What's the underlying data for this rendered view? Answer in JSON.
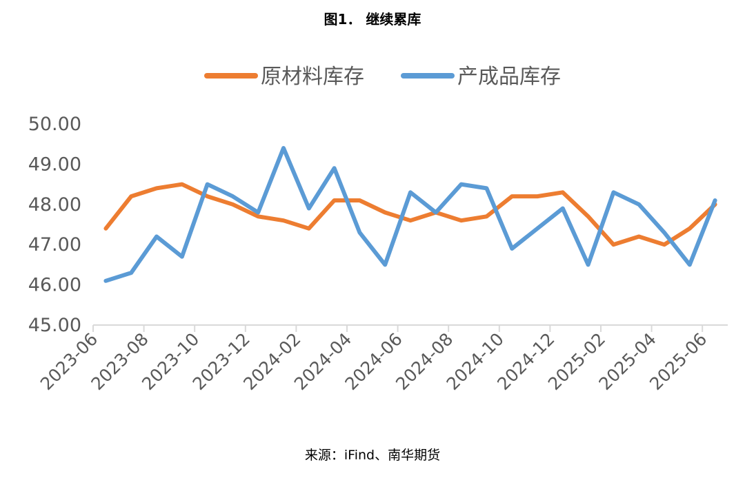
{
  "title": "图1．  继续累库",
  "source": "来源：iFind、南华期货",
  "chart_data": {
    "type": "line",
    "title": "图1．  继续累库",
    "xlabel": "",
    "ylabel": "",
    "ylim": [
      45,
      50
    ],
    "yticks": [
      "45.00",
      "46.00",
      "47.00",
      "48.00",
      "49.00",
      "50.00"
    ],
    "x_tick_labels": [
      "2023-06",
      "2023-08",
      "2023-10",
      "2023-12",
      "2024-02",
      "2024-04",
      "2024-06",
      "2024-08",
      "2024-10",
      "2024-12",
      "2025-02",
      "2025-04",
      "2025-06"
    ],
    "x": [
      "2023-06",
      "2023-07",
      "2023-08",
      "2023-09",
      "2023-10",
      "2023-11",
      "2023-12",
      "2024-01",
      "2024-02",
      "2024-03",
      "2024-04",
      "2024-05",
      "2024-06",
      "2024-07",
      "2024-08",
      "2024-09",
      "2024-10",
      "2024-11",
      "2024-12",
      "2025-01",
      "2025-02",
      "2025-03",
      "2025-04",
      "2025-05",
      "2025-06"
    ],
    "grid": false,
    "legend": "top",
    "series": [
      {
        "name": "原材料库存",
        "color": "#ED7D31",
        "values": [
          47.4,
          48.2,
          48.4,
          48.5,
          48.2,
          48.0,
          47.7,
          47.6,
          47.4,
          48.1,
          48.1,
          47.8,
          47.6,
          47.8,
          47.6,
          47.7,
          48.2,
          48.2,
          48.3,
          47.7,
          47.0,
          47.2,
          47.0,
          47.4,
          48.0
        ]
      },
      {
        "name": "产成品库存",
        "color": "#5B9BD5",
        "values": [
          46.1,
          46.3,
          47.2,
          46.7,
          48.5,
          48.2,
          47.8,
          49.4,
          47.9,
          48.9,
          47.3,
          46.5,
          48.3,
          47.8,
          48.5,
          48.4,
          46.9,
          47.4,
          47.9,
          46.5,
          48.3,
          48.0,
          47.3,
          46.5,
          48.1
        ]
      }
    ]
  }
}
